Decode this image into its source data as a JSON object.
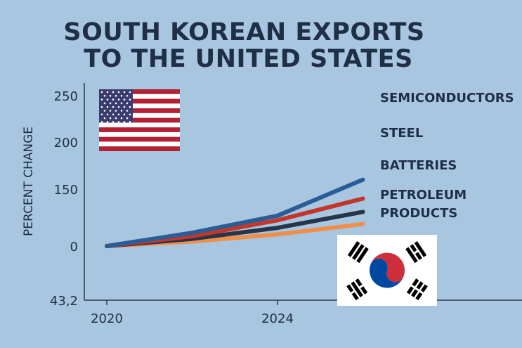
{
  "chart_data": {
    "type": "line",
    "title_lines": [
      "SOUTH KOREAN EXPORTS",
      "TO THE UNITED STATES"
    ],
    "ylabel": "PERCENT CHANGE",
    "xlabel": "",
    "y_ticks": [
      {
        "value": 250,
        "label": "250"
      },
      {
        "value": 200,
        "label": "200"
      },
      {
        "value": 150,
        "label": "150"
      },
      {
        "value": 0,
        "label": "0"
      },
      {
        "value": -43.2,
        "label": "43,2"
      }
    ],
    "x_ticks": [
      {
        "value": 2020,
        "label": "2020"
      },
      {
        "value": 2024,
        "label": "2024"
      }
    ],
    "x": [
      2020,
      2022,
      2024,
      2026
    ],
    "series": [
      {
        "name": "SEMICONDUCTORS",
        "color": "#2a5d96",
        "values": [
          0,
          35,
          80,
          160
        ]
      },
      {
        "name": "STEEL",
        "color": "#c2372b",
        "values": [
          0,
          26,
          68,
          125
        ]
      },
      {
        "name": "BATTERIES",
        "color": "#263547",
        "values": [
          0,
          19,
          48,
          90
        ]
      },
      {
        "name": "PETROLEUM PRODUCTS",
        "color": "#ee8f4c",
        "values": [
          0,
          12,
          31,
          58
        ]
      }
    ],
    "legend_placement": "right (line-end labels)",
    "grid": false
  },
  "decorations": {
    "flag_us": "us-flag-icon",
    "flag_kr": "south-korea-flag-icon"
  }
}
